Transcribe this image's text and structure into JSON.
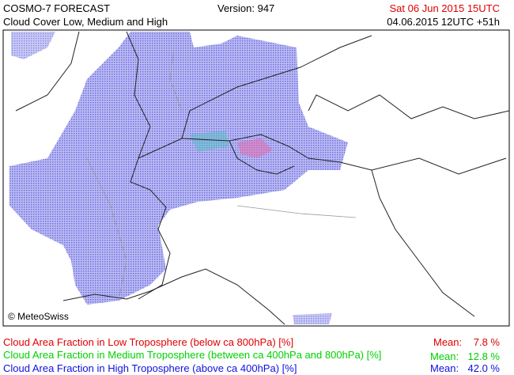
{
  "header": {
    "title": "COSMO-7 FORECAST",
    "subtitle": "Cloud Cover Low, Medium and High",
    "version": "Version: 947",
    "valid_time": "Sat 06 Jun 2015 15UTC",
    "run": "04.06.2015 12UTC +51h"
  },
  "map": {
    "credit": "© MeteoSwiss"
  },
  "legend": [
    {
      "label": "Cloud Area Fraction in Low Troposphere (below ca 800hPa) [%]",
      "mean_label": "Mean:",
      "mean": "7.8 %"
    },
    {
      "label": "Cloud Area Fraction in Medium Troposphere (between ca 400hPa and 800hPa) [%]",
      "mean_label": "Mean:",
      "mean": "12.8 %"
    },
    {
      "label": "Cloud Area Fraction in High Troposphere (above ca 400hPa) [%]",
      "mean_label": "Mean:",
      "mean": "42.0 %"
    }
  ]
}
